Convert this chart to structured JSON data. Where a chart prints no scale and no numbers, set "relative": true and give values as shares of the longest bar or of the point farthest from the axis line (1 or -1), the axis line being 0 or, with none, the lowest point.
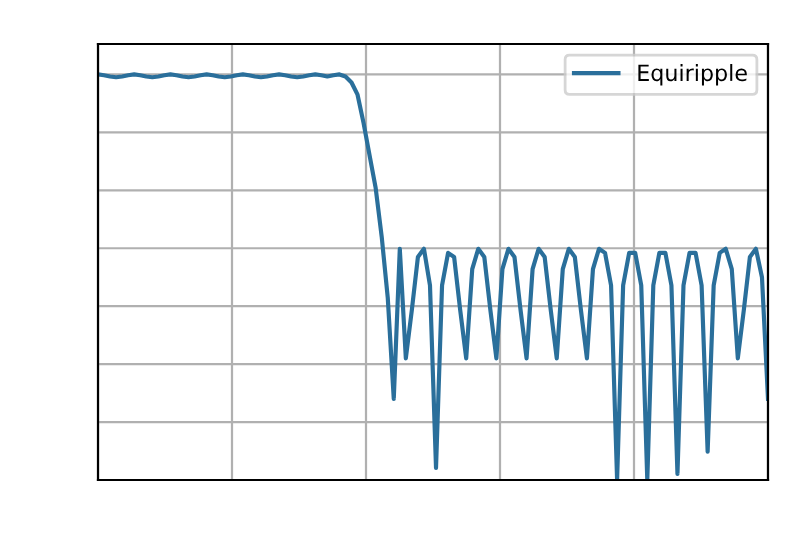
{
  "chart_data": {
    "type": "line",
    "relative": true,
    "grid": true,
    "legend": "top right",
    "line_style": "solid",
    "marker": "none",
    "categories": [
      null,
      null,
      null,
      null,
      null,
      null,
      null,
      null,
      null,
      null,
      null,
      null,
      null,
      null,
      null,
      null,
      null,
      null,
      null,
      null,
      null,
      null,
      null,
      null,
      null,
      null,
      null,
      null,
      null,
      null,
      null,
      null,
      null,
      null,
      null,
      null,
      null,
      null,
      null,
      null,
      null,
      null,
      null,
      null,
      null,
      null,
      null,
      null,
      null,
      null,
      null,
      null,
      null,
      null,
      null,
      null,
      null,
      null,
      null,
      null,
      null,
      null,
      null,
      null,
      null,
      null,
      null,
      null,
      null,
      null,
      null,
      null,
      null,
      null,
      null,
      null,
      null,
      null,
      null,
      null,
      null,
      null,
      null,
      null,
      null,
      null,
      null,
      null,
      null,
      null,
      null,
      null,
      null,
      null,
      null,
      null,
      null,
      null,
      null,
      null,
      null,
      null,
      null,
      null,
      null,
      null,
      null,
      null,
      null,
      null,
      null,
      null
    ],
    "series": [
      {
        "name": "Equiripple",
        "color": "#2a6f9b",
        "values": [
          1.0,
          0.998,
          0.995,
          0.993,
          0.995,
          0.998,
          1.0,
          0.998,
          0.995,
          0.993,
          0.995,
          0.998,
          1.0,
          0.998,
          0.995,
          0.993,
          0.995,
          0.998,
          1.0,
          0.998,
          0.995,
          0.993,
          0.995,
          0.998,
          1.0,
          0.998,
          0.995,
          0.993,
          0.995,
          0.998,
          1.0,
          0.998,
          0.995,
          0.993,
          0.995,
          0.998,
          1.0,
          0.998,
          0.995,
          0.998,
          1.0,
          0.995,
          0.98,
          0.95,
          0.88,
          0.8,
          0.72,
          0.6,
          0.45,
          0.2,
          0.57,
          0.3,
          0.42,
          0.55,
          0.57,
          0.48,
          0.03,
          0.48,
          0.56,
          0.55,
          0.42,
          0.3,
          0.52,
          0.57,
          0.55,
          0.42,
          0.3,
          0.52,
          0.57,
          0.55,
          0.42,
          0.3,
          0.52,
          0.57,
          0.55,
          0.42,
          0.3,
          0.52,
          0.57,
          0.55,
          0.42,
          0.3,
          0.52,
          0.57,
          0.56,
          0.48,
          0.0,
          0.48,
          0.56,
          0.56,
          0.48,
          0.0,
          0.48,
          0.56,
          0.56,
          0.48,
          0.015,
          0.48,
          0.56,
          0.56,
          0.48,
          0.07,
          0.48,
          0.56,
          0.57,
          0.52,
          0.3,
          0.42,
          0.55,
          0.57,
          0.5,
          0.2
        ]
      }
    ]
  }
}
